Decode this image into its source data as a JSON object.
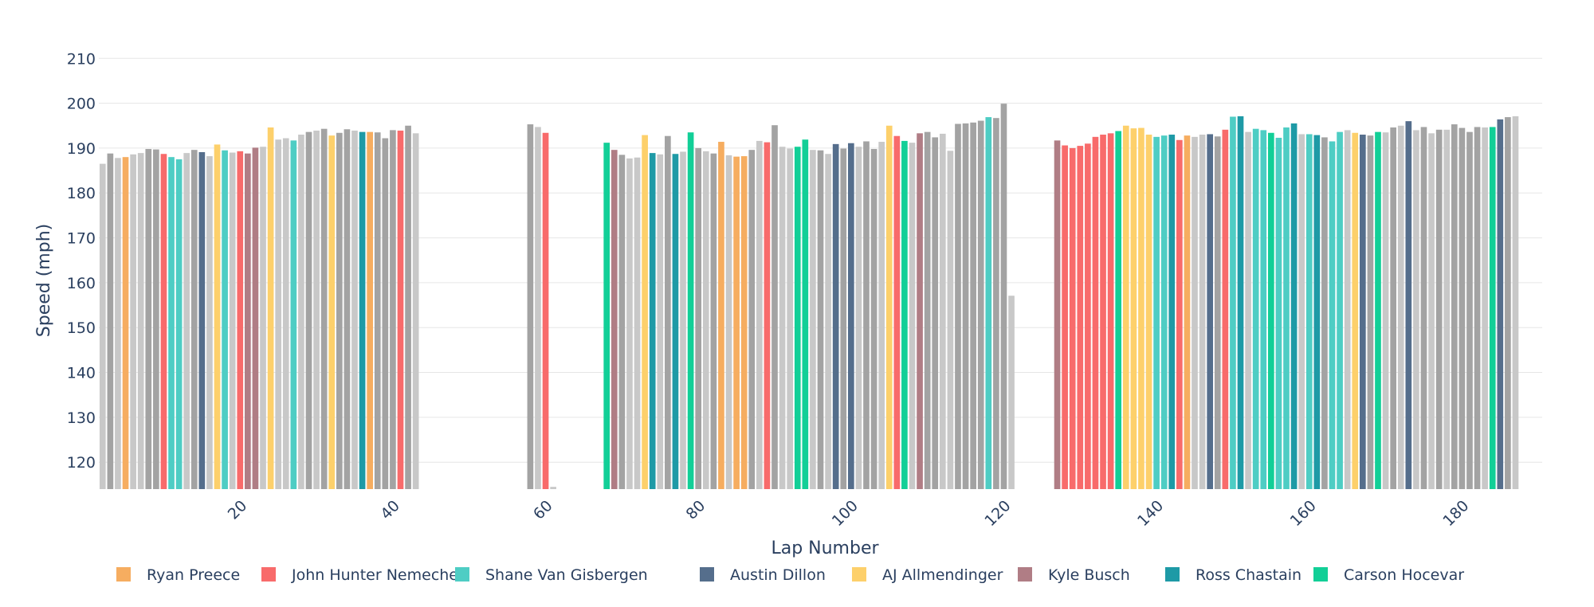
{
  "chart_data": {
    "type": "bar",
    "title": "",
    "xlabel": "Lap Number",
    "ylabel": "Speed (mph)",
    "xlim": [
      1,
      189
    ],
    "ylim": [
      114,
      212
    ],
    "yticks": [
      120,
      130,
      140,
      150,
      160,
      170,
      180,
      190,
      200,
      210
    ],
    "xticks": [
      20,
      40,
      60,
      80,
      100,
      120,
      140,
      160,
      180
    ],
    "grid": true,
    "legend_position": "bottom",
    "colors": {
      "Ryan Preece": "#f6ad60",
      "John Hunter Nemechek": "#f86b6b",
      "Shane Van Gisbergen": "#4ecdc4",
      "Austin Dillon": "#556e8c",
      "AJ Allmendinger": "#fdd06b",
      "Kyle Busch": "#b07d85",
      "Ross Chastain": "#1e9aa6",
      "Carson Hocevar": "#12cf97",
      "other_dark": "#a3a3a3",
      "other_light": "#c8c8c8"
    },
    "series": [
      {
        "name": "Ryan Preece"
      },
      {
        "name": "John Hunter Nemechek"
      },
      {
        "name": "Shane Van Gisbergen"
      },
      {
        "name": "Austin Dillon"
      },
      {
        "name": "AJ Allmendinger"
      },
      {
        "name": "Kyle Busch"
      },
      {
        "name": "Ross Chastain"
      },
      {
        "name": "Carson Hocevar"
      }
    ],
    "laps": [
      {
        "lap": 1,
        "speed": 186.5,
        "driver": "other_light"
      },
      {
        "lap": 2,
        "speed": 188.8,
        "driver": "other_dark"
      },
      {
        "lap": 3,
        "speed": 187.8,
        "driver": "other_light"
      },
      {
        "lap": 4,
        "speed": 188.0,
        "driver": "Ryan Preece"
      },
      {
        "lap": 5,
        "speed": 188.6,
        "driver": "other_light"
      },
      {
        "lap": 6,
        "speed": 188.9,
        "driver": "other_light"
      },
      {
        "lap": 7,
        "speed": 189.8,
        "driver": "other_dark"
      },
      {
        "lap": 8,
        "speed": 189.7,
        "driver": "other_dark"
      },
      {
        "lap": 9,
        "speed": 188.7,
        "driver": "John Hunter Nemechek"
      },
      {
        "lap": 10,
        "speed": 188.0,
        "driver": "Shane Van Gisbergen"
      },
      {
        "lap": 11,
        "speed": 187.5,
        "driver": "Shane Van Gisbergen"
      },
      {
        "lap": 12,
        "speed": 188.9,
        "driver": "other_light"
      },
      {
        "lap": 13,
        "speed": 189.6,
        "driver": "other_dark"
      },
      {
        "lap": 14,
        "speed": 189.1,
        "driver": "Austin Dillon"
      },
      {
        "lap": 15,
        "speed": 188.2,
        "driver": "other_light"
      },
      {
        "lap": 16,
        "speed": 190.8,
        "driver": "AJ Allmendinger"
      },
      {
        "lap": 17,
        "speed": 189.5,
        "driver": "Shane Van Gisbergen"
      },
      {
        "lap": 18,
        "speed": 189.0,
        "driver": "other_light"
      },
      {
        "lap": 19,
        "speed": 189.3,
        "driver": "John Hunter Nemechek"
      },
      {
        "lap": 20,
        "speed": 188.8,
        "driver": "Kyle Busch"
      },
      {
        "lap": 21,
        "speed": 190.1,
        "driver": "Kyle Busch"
      },
      {
        "lap": 22,
        "speed": 190.3,
        "driver": "other_light"
      },
      {
        "lap": 23,
        "speed": 194.6,
        "driver": "AJ Allmendinger"
      },
      {
        "lap": 24,
        "speed": 191.9,
        "driver": "other_light"
      },
      {
        "lap": 25,
        "speed": 192.2,
        "driver": "other_light"
      },
      {
        "lap": 26,
        "speed": 191.7,
        "driver": "Shane Van Gisbergen"
      },
      {
        "lap": 27,
        "speed": 193.0,
        "driver": "other_light"
      },
      {
        "lap": 28,
        "speed": 193.6,
        "driver": "other_dark"
      },
      {
        "lap": 29,
        "speed": 193.9,
        "driver": "other_light"
      },
      {
        "lap": 30,
        "speed": 194.3,
        "driver": "other_dark"
      },
      {
        "lap": 31,
        "speed": 192.8,
        "driver": "AJ Allmendinger"
      },
      {
        "lap": 32,
        "speed": 193.4,
        "driver": "other_dark"
      },
      {
        "lap": 33,
        "speed": 194.2,
        "driver": "other_dark"
      },
      {
        "lap": 34,
        "speed": 193.9,
        "driver": "other_light"
      },
      {
        "lap": 35,
        "speed": 193.6,
        "driver": "Ross Chastain"
      },
      {
        "lap": 36,
        "speed": 193.6,
        "driver": "Ryan Preece"
      },
      {
        "lap": 37,
        "speed": 193.5,
        "driver": "other_dark"
      },
      {
        "lap": 38,
        "speed": 192.2,
        "driver": "other_dark"
      },
      {
        "lap": 39,
        "speed": 194.0,
        "driver": "other_dark"
      },
      {
        "lap": 40,
        "speed": 193.9,
        "driver": "John Hunter Nemechek"
      },
      {
        "lap": 41,
        "speed": 195.0,
        "driver": "other_dark"
      },
      {
        "lap": 42,
        "speed": 193.3,
        "driver": "other_light"
      },
      {
        "lap": 57,
        "speed": 195.3,
        "driver": "other_dark"
      },
      {
        "lap": 58,
        "speed": 194.7,
        "driver": "other_light"
      },
      {
        "lap": 59,
        "speed": 193.4,
        "driver": "John Hunter Nemechek"
      },
      {
        "lap": 60,
        "speed": 114.5,
        "driver": "other_light"
      },
      {
        "lap": 67,
        "speed": 191.2,
        "driver": "Carson Hocevar"
      },
      {
        "lap": 68,
        "speed": 189.6,
        "driver": "Kyle Busch"
      },
      {
        "lap": 69,
        "speed": 188.5,
        "driver": "other_dark"
      },
      {
        "lap": 70,
        "speed": 187.7,
        "driver": "other_light"
      },
      {
        "lap": 71,
        "speed": 187.9,
        "driver": "other_light"
      },
      {
        "lap": 72,
        "speed": 192.9,
        "driver": "AJ Allmendinger"
      },
      {
        "lap": 73,
        "speed": 188.9,
        "driver": "Ross Chastain"
      },
      {
        "lap": 74,
        "speed": 188.6,
        "driver": "other_light"
      },
      {
        "lap": 75,
        "speed": 192.7,
        "driver": "other_dark"
      },
      {
        "lap": 76,
        "speed": 188.7,
        "driver": "Ross Chastain"
      },
      {
        "lap": 77,
        "speed": 189.2,
        "driver": "other_light"
      },
      {
        "lap": 78,
        "speed": 193.5,
        "driver": "Carson Hocevar"
      },
      {
        "lap": 79,
        "speed": 190.0,
        "driver": "other_dark"
      },
      {
        "lap": 80,
        "speed": 189.3,
        "driver": "other_light"
      },
      {
        "lap": 81,
        "speed": 188.8,
        "driver": "other_dark"
      },
      {
        "lap": 82,
        "speed": 191.4,
        "driver": "Ryan Preece"
      },
      {
        "lap": 83,
        "speed": 188.4,
        "driver": "other_light"
      },
      {
        "lap": 84,
        "speed": 188.1,
        "driver": "Ryan Preece"
      },
      {
        "lap": 85,
        "speed": 188.2,
        "driver": "Ryan Preece"
      },
      {
        "lap": 86,
        "speed": 189.6,
        "driver": "other_dark"
      },
      {
        "lap": 87,
        "speed": 191.6,
        "driver": "other_light"
      },
      {
        "lap": 88,
        "speed": 191.3,
        "driver": "John Hunter Nemechek"
      },
      {
        "lap": 89,
        "speed": 195.1,
        "driver": "other_dark"
      },
      {
        "lap": 90,
        "speed": 190.3,
        "driver": "other_light"
      },
      {
        "lap": 91,
        "speed": 189.9,
        "driver": "other_light"
      },
      {
        "lap": 92,
        "speed": 190.3,
        "driver": "Carson Hocevar"
      },
      {
        "lap": 93,
        "speed": 191.9,
        "driver": "Carson Hocevar"
      },
      {
        "lap": 94,
        "speed": 189.6,
        "driver": "other_light"
      },
      {
        "lap": 95,
        "speed": 189.5,
        "driver": "other_dark"
      },
      {
        "lap": 96,
        "speed": 188.7,
        "driver": "other_light"
      },
      {
        "lap": 97,
        "speed": 190.9,
        "driver": "Austin Dillon"
      },
      {
        "lap": 98,
        "speed": 189.9,
        "driver": "other_dark"
      },
      {
        "lap": 99,
        "speed": 191.1,
        "driver": "Austin Dillon"
      },
      {
        "lap": 100,
        "speed": 190.3,
        "driver": "other_light"
      },
      {
        "lap": 101,
        "speed": 191.5,
        "driver": "other_dark"
      },
      {
        "lap": 102,
        "speed": 189.8,
        "driver": "other_dark"
      },
      {
        "lap": 103,
        "speed": 191.4,
        "driver": "other_light"
      },
      {
        "lap": 104,
        "speed": 195.0,
        "driver": "AJ Allmendinger"
      },
      {
        "lap": 105,
        "speed": 192.7,
        "driver": "John Hunter Nemechek"
      },
      {
        "lap": 106,
        "speed": 191.6,
        "driver": "Carson Hocevar"
      },
      {
        "lap": 107,
        "speed": 191.2,
        "driver": "other_light"
      },
      {
        "lap": 108,
        "speed": 193.3,
        "driver": "Kyle Busch"
      },
      {
        "lap": 109,
        "speed": 193.6,
        "driver": "other_dark"
      },
      {
        "lap": 110,
        "speed": 192.4,
        "driver": "other_dark"
      },
      {
        "lap": 111,
        "speed": 193.2,
        "driver": "other_light"
      },
      {
        "lap": 112,
        "speed": 189.4,
        "driver": "other_light"
      },
      {
        "lap": 113,
        "speed": 195.4,
        "driver": "other_dark"
      },
      {
        "lap": 114,
        "speed": 195.5,
        "driver": "other_dark"
      },
      {
        "lap": 115,
        "speed": 195.7,
        "driver": "other_dark"
      },
      {
        "lap": 116,
        "speed": 196.1,
        "driver": "other_dark"
      },
      {
        "lap": 117,
        "speed": 196.9,
        "driver": "Shane Van Gisbergen"
      },
      {
        "lap": 118,
        "speed": 196.7,
        "driver": "other_dark"
      },
      {
        "lap": 119,
        "speed": 199.9,
        "driver": "other_dark"
      },
      {
        "lap": 120,
        "speed": 157.1,
        "driver": "other_light"
      },
      {
        "lap": 126,
        "speed": 191.7,
        "driver": "Kyle Busch"
      },
      {
        "lap": 127,
        "speed": 190.6,
        "driver": "John Hunter Nemechek"
      },
      {
        "lap": 128,
        "speed": 190.0,
        "driver": "John Hunter Nemechek"
      },
      {
        "lap": 129,
        "speed": 190.5,
        "driver": "John Hunter Nemechek"
      },
      {
        "lap": 130,
        "speed": 191.0,
        "driver": "John Hunter Nemechek"
      },
      {
        "lap": 131,
        "speed": 192.5,
        "driver": "John Hunter Nemechek"
      },
      {
        "lap": 132,
        "speed": 193.0,
        "driver": "John Hunter Nemechek"
      },
      {
        "lap": 133,
        "speed": 193.3,
        "driver": "John Hunter Nemechek"
      },
      {
        "lap": 134,
        "speed": 193.8,
        "driver": "Carson Hocevar"
      },
      {
        "lap": 135,
        "speed": 195.0,
        "driver": "AJ Allmendinger"
      },
      {
        "lap": 136,
        "speed": 194.4,
        "driver": "AJ Allmendinger"
      },
      {
        "lap": 137,
        "speed": 194.5,
        "driver": "AJ Allmendinger"
      },
      {
        "lap": 138,
        "speed": 193.0,
        "driver": "AJ Allmendinger"
      },
      {
        "lap": 139,
        "speed": 192.5,
        "driver": "Shane Van Gisbergen"
      },
      {
        "lap": 140,
        "speed": 192.8,
        "driver": "Shane Van Gisbergen"
      },
      {
        "lap": 141,
        "speed": 193.0,
        "driver": "Ross Chastain"
      },
      {
        "lap": 142,
        "speed": 191.8,
        "driver": "John Hunter Nemechek"
      },
      {
        "lap": 143,
        "speed": 192.8,
        "driver": "Ryan Preece"
      },
      {
        "lap": 144,
        "speed": 192.5,
        "driver": "other_light"
      },
      {
        "lap": 145,
        "speed": 193.0,
        "driver": "other_light"
      },
      {
        "lap": 146,
        "speed": 193.1,
        "driver": "Austin Dillon"
      },
      {
        "lap": 147,
        "speed": 192.6,
        "driver": "other_dark"
      },
      {
        "lap": 148,
        "speed": 194.1,
        "driver": "John Hunter Nemechek"
      },
      {
        "lap": 149,
        "speed": 197.0,
        "driver": "Shane Van Gisbergen"
      },
      {
        "lap": 150,
        "speed": 197.1,
        "driver": "Ross Chastain"
      },
      {
        "lap": 151,
        "speed": 193.6,
        "driver": "other_light"
      },
      {
        "lap": 152,
        "speed": 194.3,
        "driver": "Shane Van Gisbergen"
      },
      {
        "lap": 153,
        "speed": 194.0,
        "driver": "Shane Van Gisbergen"
      },
      {
        "lap": 154,
        "speed": 193.4,
        "driver": "Carson Hocevar"
      },
      {
        "lap": 155,
        "speed": 192.3,
        "driver": "Shane Van Gisbergen"
      },
      {
        "lap": 156,
        "speed": 194.6,
        "driver": "Shane Van Gisbergen"
      },
      {
        "lap": 157,
        "speed": 195.5,
        "driver": "Ross Chastain"
      },
      {
        "lap": 158,
        "speed": 193.1,
        "driver": "other_light"
      },
      {
        "lap": 159,
        "speed": 193.1,
        "driver": "Shane Van Gisbergen"
      },
      {
        "lap": 160,
        "speed": 192.9,
        "driver": "Ross Chastain"
      },
      {
        "lap": 161,
        "speed": 192.4,
        "driver": "other_dark"
      },
      {
        "lap": 162,
        "speed": 191.5,
        "driver": "Shane Van Gisbergen"
      },
      {
        "lap": 163,
        "speed": 193.6,
        "driver": "Shane Van Gisbergen"
      },
      {
        "lap": 164,
        "speed": 194.0,
        "driver": "other_light"
      },
      {
        "lap": 165,
        "speed": 193.4,
        "driver": "AJ Allmendinger"
      },
      {
        "lap": 166,
        "speed": 193.0,
        "driver": "Austin Dillon"
      },
      {
        "lap": 167,
        "speed": 192.8,
        "driver": "other_dark"
      },
      {
        "lap": 168,
        "speed": 193.6,
        "driver": "Carson Hocevar"
      },
      {
        "lap": 169,
        "speed": 193.5,
        "driver": "other_light"
      },
      {
        "lap": 170,
        "speed": 194.6,
        "driver": "other_dark"
      },
      {
        "lap": 171,
        "speed": 195.0,
        "driver": "other_light"
      },
      {
        "lap": 172,
        "speed": 196.0,
        "driver": "Austin Dillon"
      },
      {
        "lap": 173,
        "speed": 194.0,
        "driver": "other_light"
      },
      {
        "lap": 174,
        "speed": 194.7,
        "driver": "other_dark"
      },
      {
        "lap": 175,
        "speed": 193.3,
        "driver": "other_light"
      },
      {
        "lap": 176,
        "speed": 194.1,
        "driver": "other_dark"
      },
      {
        "lap": 177,
        "speed": 194.1,
        "driver": "other_light"
      },
      {
        "lap": 178,
        "speed": 195.3,
        "driver": "other_dark"
      },
      {
        "lap": 179,
        "speed": 194.5,
        "driver": "other_dark"
      },
      {
        "lap": 180,
        "speed": 193.6,
        "driver": "other_dark"
      },
      {
        "lap": 181,
        "speed": 194.7,
        "driver": "other_dark"
      },
      {
        "lap": 182,
        "speed": 194.6,
        "driver": "other_light"
      },
      {
        "lap": 183,
        "speed": 194.7,
        "driver": "Carson Hocevar"
      },
      {
        "lap": 184,
        "speed": 196.4,
        "driver": "Austin Dillon"
      },
      {
        "lap": 185,
        "speed": 196.9,
        "driver": "other_dark"
      },
      {
        "lap": 186,
        "speed": 197.1,
        "driver": "other_light"
      }
    ]
  }
}
